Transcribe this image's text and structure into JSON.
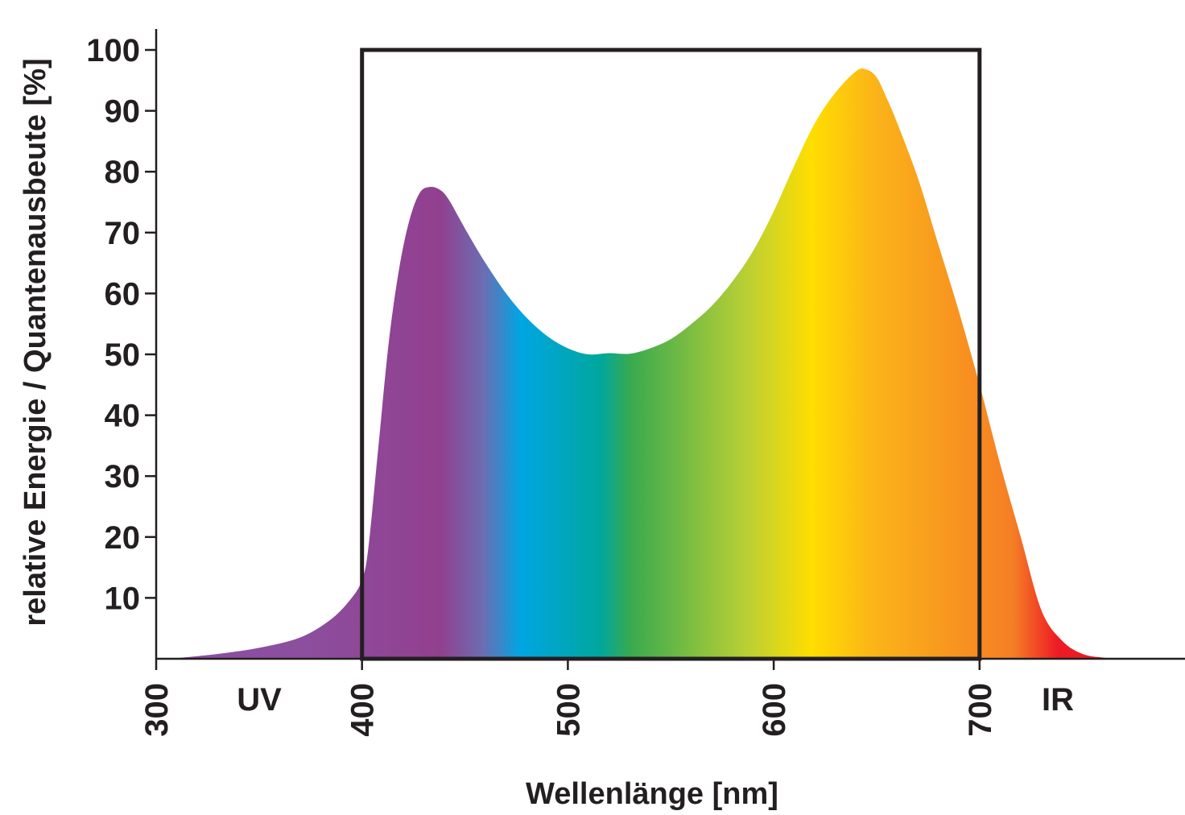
{
  "chart_data": {
    "type": "area",
    "title": "",
    "xlabel": "Wellenlänge [nm]",
    "ylabel": "relative Energie / Quantenausbeute [%]",
    "xlim": [
      300,
      800
    ],
    "ylim": [
      0,
      100
    ],
    "x_ticks": [
      "300",
      "400",
      "500",
      "600",
      "700"
    ],
    "y_ticks": [
      "10",
      "20",
      "30",
      "40",
      "50",
      "60",
      "70",
      "80",
      "90",
      "100"
    ],
    "grid": false,
    "annotations": {
      "uv_label": "UV",
      "ir_label": "IR"
    },
    "par_range": {
      "x": [
        400,
        700
      ],
      "y": [
        0,
        100
      ]
    },
    "series": [
      {
        "x": [
          310,
          330,
          350,
          370,
          385,
          395,
          400,
          403,
          408,
          413,
          418,
          423,
          428,
          433,
          438,
          442,
          447,
          452,
          460,
          470,
          480,
          490,
          500,
          510,
          520,
          530,
          540,
          550,
          560,
          570,
          580,
          590,
          600,
          610,
          620,
          630,
          640,
          645,
          650,
          655,
          660,
          670,
          680,
          690,
          700,
          710,
          720,
          730,
          740,
          750,
          760,
          767
        ],
        "y": [
          0.1,
          0.8,
          1.8,
          3.5,
          6.5,
          10,
          13,
          18,
          35,
          52,
          64,
          72,
          76.5,
          77.5,
          77,
          75.5,
          72.5,
          69.5,
          65,
          60,
          56,
          53,
          51,
          50,
          50.2,
          50.1,
          51,
          52.5,
          55,
          58,
          62,
          67,
          73.5,
          81,
          88,
          93,
          96.5,
          96.8,
          95.5,
          92,
          88,
          79,
          68,
          57,
          45,
          32,
          20,
          8,
          3,
          0.8,
          0.2,
          0
        ]
      }
    ],
    "spectrum_colors": [
      "#8c4f9f",
      "#923f8f",
      "#6c6db2",
      "#00a5e3",
      "#00a79d",
      "#39aa4f",
      "#b9cf35",
      "#ffde00",
      "#fbb419",
      "#f57e25",
      "#ed1c24"
    ]
  }
}
